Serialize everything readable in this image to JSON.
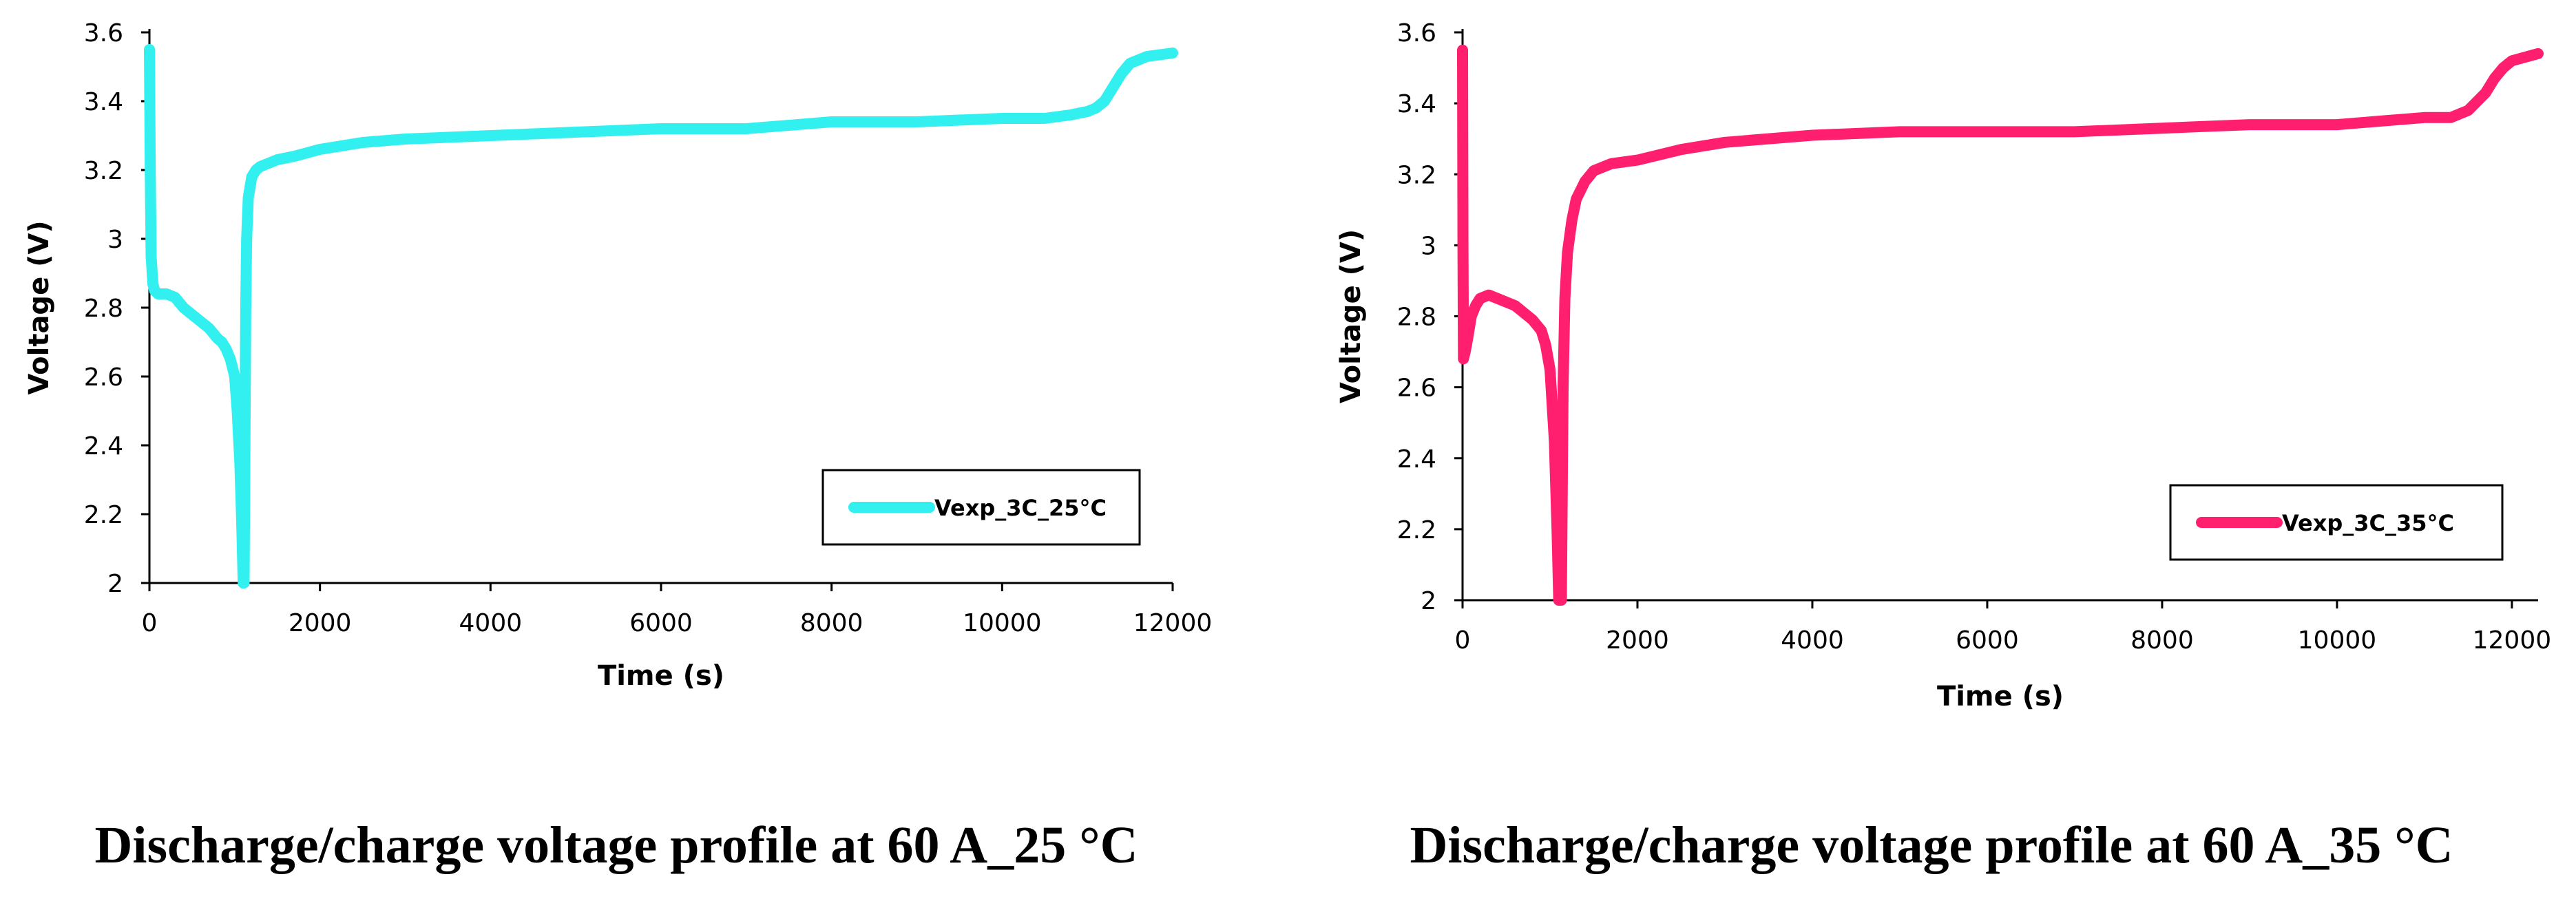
{
  "chart_data": [
    {
      "type": "line",
      "title": "",
      "caption": "Discharge/charge voltage profile at 60 A_25 °C",
      "xlabel": "Time (s)",
      "ylabel": "Voltage (V)",
      "xlim": [
        0,
        12000
      ],
      "ylim": [
        2,
        3.6
      ],
      "xticks": [
        0,
        2000,
        4000,
        6000,
        8000,
        10000,
        12000
      ],
      "yticks": [
        2,
        2.2,
        2.4,
        2.6,
        2.8,
        3,
        3.2,
        3.4,
        3.6
      ],
      "ytick_labels": [
        "2",
        "2.2",
        "2.4",
        "2.6",
        "2.8",
        "3",
        "3.2",
        "3.4",
        "3.6"
      ],
      "grid": false,
      "legend_position": "bottom-right",
      "series": [
        {
          "name": "Vexp_3C_25°C",
          "color": "#33f0f0",
          "x": [
            0,
            10,
            20,
            40,
            60,
            100,
            150,
            200,
            300,
            400,
            500,
            600,
            700,
            800,
            850,
            900,
            950,
            1000,
            1030,
            1060,
            1080,
            1100,
            1110,
            1120,
            1130,
            1140,
            1160,
            1200,
            1250,
            1300,
            1400,
            1500,
            1700,
            2000,
            2500,
            3000,
            4000,
            5000,
            6000,
            7000,
            8000,
            9000,
            10000,
            10500,
            10800,
            11000,
            11100,
            11200,
            11300,
            11400,
            11500,
            11700,
            12000
          ],
          "y": [
            3.55,
            3.2,
            2.95,
            2.87,
            2.85,
            2.84,
            2.84,
            2.84,
            2.83,
            2.8,
            2.78,
            2.76,
            2.74,
            2.71,
            2.7,
            2.68,
            2.65,
            2.6,
            2.5,
            2.35,
            2.2,
            2.0,
            2.0,
            2.4,
            2.8,
            3.0,
            3.12,
            3.18,
            3.2,
            3.21,
            3.22,
            3.23,
            3.24,
            3.26,
            3.28,
            3.29,
            3.3,
            3.31,
            3.32,
            3.32,
            3.34,
            3.34,
            3.35,
            3.35,
            3.36,
            3.37,
            3.38,
            3.4,
            3.44,
            3.48,
            3.51,
            3.53,
            3.54
          ]
        }
      ]
    },
    {
      "type": "line",
      "title": "",
      "caption": "Discharge/charge voltage profile at 60 A_35 °C",
      "xlabel": "Time (s)",
      "ylabel": "Voltage (V)",
      "xlim": [
        0,
        12300
      ],
      "ylim": [
        2,
        3.6
      ],
      "xticks": [
        0,
        2000,
        4000,
        6000,
        8000,
        10000,
        12000
      ],
      "yticks": [
        2,
        2.2,
        2.4,
        2.6,
        2.8,
        3,
        3.2,
        3.4,
        3.6
      ],
      "ytick_labels": [
        "2",
        "2.2",
        "2.4",
        "2.6",
        "2.8",
        "3",
        "3.2",
        "3.4",
        "3.6"
      ],
      "grid": false,
      "legend_position": "bottom-right",
      "series": [
        {
          "name": "Vexp_3C_35°C",
          "color": "#ff1f6e",
          "x": [
            0,
            5,
            10,
            30,
            60,
            100,
            150,
            200,
            300,
            400,
            500,
            600,
            700,
            800,
            900,
            950,
            1000,
            1050,
            1080,
            1100,
            1110,
            1120,
            1130,
            1150,
            1170,
            1200,
            1250,
            1300,
            1400,
            1500,
            1700,
            2000,
            2500,
            3000,
            4000,
            5000,
            6000,
            7000,
            8000,
            9000,
            10000,
            10500,
            11000,
            11300,
            11500,
            11700,
            11800,
            11900,
            12000,
            12300
          ],
          "y": [
            3.55,
            3.0,
            2.68,
            2.7,
            2.74,
            2.8,
            2.83,
            2.85,
            2.86,
            2.85,
            2.84,
            2.83,
            2.81,
            2.79,
            2.76,
            2.72,
            2.65,
            2.45,
            2.2,
            2.0,
            2.0,
            2.0,
            2.0,
            2.6,
            2.85,
            2.98,
            3.07,
            3.13,
            3.18,
            3.21,
            3.23,
            3.24,
            3.27,
            3.29,
            3.31,
            3.32,
            3.32,
            3.32,
            3.33,
            3.34,
            3.34,
            3.35,
            3.36,
            3.36,
            3.38,
            3.43,
            3.47,
            3.5,
            3.52,
            3.54
          ]
        }
      ]
    }
  ]
}
